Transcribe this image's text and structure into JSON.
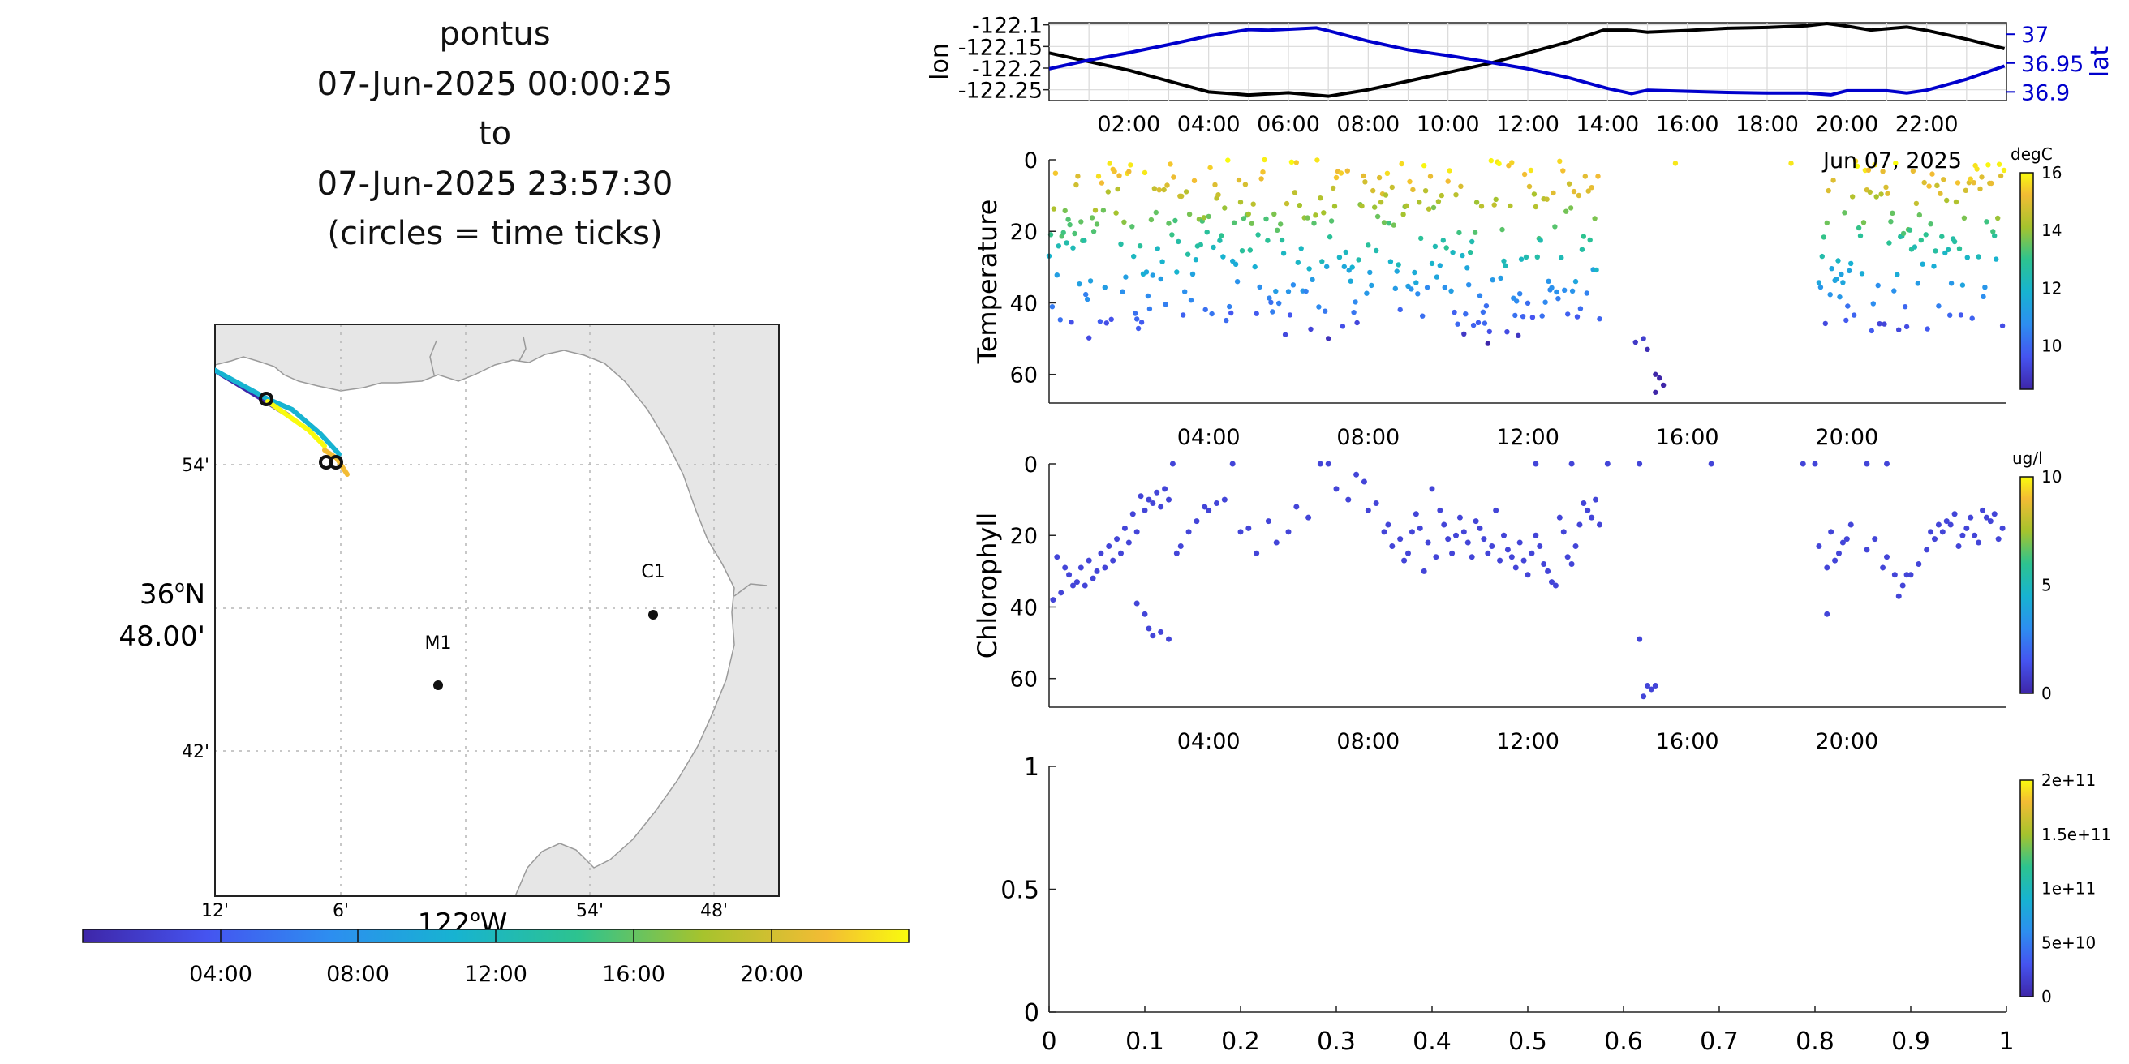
{
  "title": {
    "lines": [
      "pontus",
      "07-Jun-2025 00:00:25",
      "to",
      "07-Jun-2025 23:57:30",
      "(circles = time ticks)"
    ]
  },
  "map": {
    "lat_ticks": [
      "54'",
      "48.00'",
      "42'"
    ],
    "lat_major_label": "36°N",
    "lon_ticks": [
      "12'",
      "6'",
      "54'",
      "48'"
    ],
    "lon_major_label": "122°W",
    "stations": [
      {
        "name": "C1",
        "lon": -121.848,
        "lat": 36.797
      },
      {
        "name": "M1",
        "lon": -122.022,
        "lat": 36.747
      }
    ],
    "colors": {
      "land": "#e6e6e6",
      "water": "#ffffff",
      "grid": "#b5b5b5"
    }
  },
  "colorbar_time": {
    "tick_labels": [
      "04:00",
      "08:00",
      "12:00",
      "16:00",
      "20:00"
    ]
  },
  "chart_data": [
    {
      "type": "line",
      "name": "position",
      "xlabel_left": "lon",
      "ylabel_right": "lat",
      "x_tick_labels": [
        "02:00",
        "04:00",
        "06:00",
        "08:00",
        "10:00",
        "12:00",
        "14:00",
        "16:00",
        "18:00",
        "20:00",
        "22:00"
      ],
      "y_left_ticks": [
        "-122.1",
        "-122.15",
        "-122.2",
        "-122.25"
      ],
      "y_right_ticks": [
        "37",
        "36.95",
        "36.9"
      ],
      "series": [
        {
          "name": "lon",
          "color": "#000000",
          "points": [
            [
              0,
              -122.165
            ],
            [
              1,
              -122.185
            ],
            [
              2,
              -122.205
            ],
            [
              3,
              -122.23
            ],
            [
              4,
              -122.255
            ],
            [
              5,
              -122.262
            ],
            [
              6,
              -122.257
            ],
            [
              7,
              -122.265
            ],
            [
              8,
              -122.25
            ],
            [
              9,
              -122.23
            ],
            [
              10,
              -122.21
            ],
            [
              11,
              -122.19
            ],
            [
              12,
              -122.165
            ],
            [
              13,
              -122.14
            ],
            [
              13.9,
              -122.112
            ],
            [
              14.5,
              -122.112
            ],
            [
              15,
              -122.117
            ],
            [
              16,
              -122.113
            ],
            [
              17,
              -122.108
            ],
            [
              18,
              -122.106
            ],
            [
              19,
              -122.102
            ],
            [
              19.5,
              -122.097
            ],
            [
              20,
              -122.103
            ],
            [
              20.6,
              -122.112
            ],
            [
              21.5,
              -122.105
            ],
            [
              22,
              -122.113
            ],
            [
              23,
              -122.133
            ],
            [
              23.95,
              -122.155
            ]
          ]
        },
        {
          "name": "lat",
          "color": "#0000cc",
          "points": [
            [
              0,
              36.94
            ],
            [
              1,
              36.955
            ],
            [
              2,
              36.968
            ],
            [
              3,
              36.982
            ],
            [
              4,
              36.997
            ],
            [
              5,
              37.008
            ],
            [
              5.5,
              37.007
            ],
            [
              6.7,
              37.011
            ],
            [
              7,
              37.006
            ],
            [
              8,
              36.988
            ],
            [
              9,
              36.973
            ],
            [
              10,
              36.963
            ],
            [
              11,
              36.952
            ],
            [
              12,
              36.94
            ],
            [
              13,
              36.925
            ],
            [
              14,
              36.906
            ],
            [
              14.6,
              36.897
            ],
            [
              15,
              36.903
            ],
            [
              16,
              36.901
            ],
            [
              17,
              36.899
            ],
            [
              18,
              36.898
            ],
            [
              19,
              36.898
            ],
            [
              19.6,
              36.895
            ],
            [
              20,
              36.902
            ],
            [
              21,
              36.902
            ],
            [
              21.5,
              36.898
            ],
            [
              22,
              36.903
            ],
            [
              23,
              36.922
            ],
            [
              23.95,
              36.945
            ]
          ]
        }
      ],
      "xlim": [
        0,
        24
      ]
    },
    {
      "type": "scatter",
      "name": "temperature",
      "ylabel": "Temperature",
      "colorbar_unit": "degC",
      "colorbar_ticks": [
        "16",
        "14",
        "12",
        "10"
      ],
      "clim": [
        8.5,
        16
      ],
      "x_tick_labels": [
        "04:00",
        "08:00",
        "12:00",
        "16:00",
        "20:00"
      ],
      "y_ticks": [
        "0",
        "20",
        "40",
        "60"
      ],
      "date_label": "Jun 07, 2025",
      "ylim": [
        68,
        0
      ],
      "xlim": [
        0,
        24
      ],
      "segments": [
        [
          0.0,
          13.8,
          0.5
        ],
        [
          19.3,
          23.95,
          0.55
        ]
      ],
      "outliers": [
        [
          14.7,
          51
        ],
        [
          14.9,
          50
        ],
        [
          15.0,
          53
        ],
        [
          15.2,
          60
        ],
        [
          15.3,
          61
        ],
        [
          15.4,
          63
        ],
        [
          15.2,
          65
        ],
        [
          15.7,
          1
        ],
        [
          18.6,
          1
        ]
      ]
    },
    {
      "type": "scatter",
      "name": "chlorophyll",
      "ylabel": "Chlorophyll",
      "colorbar_unit": "ug/l",
      "colorbar_ticks": [
        "10",
        "5",
        "0"
      ],
      "clim": [
        0,
        10
      ],
      "x_tick_labels": [
        "04:00",
        "08:00",
        "12:00",
        "16:00",
        "20:00"
      ],
      "y_ticks": [
        "0",
        "20",
        "40",
        "60"
      ],
      "ylim": [
        68,
        0
      ],
      "xlim": [
        0,
        24
      ],
      "points": [
        [
          0.1,
          38
        ],
        [
          0.2,
          26
        ],
        [
          0.3,
          36
        ],
        [
          0.4,
          29
        ],
        [
          0.5,
          31
        ],
        [
          0.6,
          34
        ],
        [
          0.7,
          33
        ],
        [
          0.8,
          29
        ],
        [
          0.9,
          34
        ],
        [
          1.0,
          27
        ],
        [
          1.1,
          32
        ],
        [
          1.2,
          30
        ],
        [
          1.3,
          25
        ],
        [
          1.4,
          29
        ],
        [
          1.5,
          23
        ],
        [
          1.6,
          27
        ],
        [
          1.7,
          21
        ],
        [
          1.8,
          25
        ],
        [
          1.9,
          18
        ],
        [
          2.0,
          22
        ],
        [
          2.1,
          14
        ],
        [
          2.2,
          19
        ],
        [
          2.3,
          9
        ],
        [
          2.4,
          13
        ],
        [
          2.5,
          10
        ],
        [
          2.6,
          11
        ],
        [
          2.7,
          8
        ],
        [
          2.8,
          12
        ],
        [
          2.9,
          7
        ],
        [
          3.0,
          10
        ],
        [
          2.4,
          42
        ],
        [
          2.5,
          46
        ],
        [
          2.6,
          48
        ],
        [
          2.8,
          47
        ],
        [
          3.0,
          49
        ],
        [
          2.2,
          39
        ],
        [
          3.2,
          25
        ],
        [
          3.3,
          23
        ],
        [
          3.5,
          19
        ],
        [
          3.7,
          16
        ],
        [
          3.9,
          12
        ],
        [
          4.0,
          13
        ],
        [
          4.2,
          11
        ],
        [
          4.4,
          10
        ],
        [
          3.1,
          0
        ],
        [
          4.6,
          0
        ],
        [
          4.8,
          19
        ],
        [
          5.0,
          18
        ],
        [
          5.2,
          25
        ],
        [
          5.5,
          16
        ],
        [
          5.7,
          22
        ],
        [
          6.0,
          19
        ],
        [
          6.2,
          12
        ],
        [
          6.5,
          15
        ],
        [
          6.8,
          0
        ],
        [
          7.0,
          0
        ],
        [
          7.2,
          7
        ],
        [
          7.5,
          10
        ],
        [
          7.7,
          3
        ],
        [
          7.9,
          5
        ],
        [
          8.0,
          13
        ],
        [
          8.2,
          11
        ],
        [
          8.4,
          19
        ],
        [
          8.5,
          17
        ],
        [
          8.6,
          23
        ],
        [
          8.8,
          21
        ],
        [
          8.9,
          27
        ],
        [
          9.0,
          25
        ],
        [
          9.1,
          19
        ],
        [
          9.2,
          14
        ],
        [
          9.3,
          18
        ],
        [
          9.4,
          30
        ],
        [
          9.5,
          22
        ],
        [
          9.6,
          7
        ],
        [
          9.7,
          26
        ],
        [
          9.8,
          13
        ],
        [
          9.9,
          17
        ],
        [
          10.0,
          21
        ],
        [
          10.1,
          25
        ],
        [
          10.2,
          20
        ],
        [
          10.3,
          15
        ],
        [
          10.4,
          19
        ],
        [
          10.5,
          22
        ],
        [
          10.6,
          26
        ],
        [
          10.7,
          16
        ],
        [
          10.8,
          18
        ],
        [
          10.9,
          21
        ],
        [
          11.0,
          25
        ],
        [
          11.1,
          23
        ],
        [
          11.2,
          13
        ],
        [
          11.3,
          27
        ],
        [
          11.4,
          20
        ],
        [
          11.5,
          24
        ],
        [
          11.6,
          26
        ],
        [
          11.7,
          29
        ],
        [
          11.8,
          22
        ],
        [
          11.9,
          27
        ],
        [
          12.0,
          31
        ],
        [
          12.1,
          25
        ],
        [
          12.2,
          20
        ],
        [
          12.3,
          23
        ],
        [
          12.4,
          28
        ],
        [
          12.5,
          30
        ],
        [
          12.6,
          33
        ],
        [
          12.7,
          34
        ],
        [
          12.8,
          15
        ],
        [
          12.9,
          19
        ],
        [
          13.0,
          26
        ],
        [
          13.1,
          28
        ],
        [
          13.2,
          23
        ],
        [
          13.3,
          17
        ],
        [
          13.4,
          11
        ],
        [
          13.5,
          13
        ],
        [
          13.6,
          15
        ],
        [
          13.7,
          10
        ],
        [
          13.8,
          17
        ],
        [
          12.2,
          0
        ],
        [
          13.1,
          0
        ],
        [
          14.0,
          0
        ],
        [
          14.8,
          0
        ],
        [
          16.6,
          0
        ],
        [
          18.9,
          0
        ],
        [
          19.2,
          0
        ],
        [
          19.3,
          23
        ],
        [
          19.5,
          29
        ],
        [
          19.6,
          19
        ],
        [
          19.7,
          27
        ],
        [
          19.8,
          25
        ],
        [
          19.9,
          22
        ],
        [
          20.0,
          21
        ],
        [
          20.1,
          17
        ],
        [
          19.5,
          42
        ],
        [
          20.5,
          24
        ],
        [
          20.7,
          21
        ],
        [
          20.9,
          29
        ],
        [
          21.0,
          26
        ],
        [
          21.2,
          31
        ],
        [
          21.3,
          37
        ],
        [
          21.4,
          34
        ],
        [
          21.5,
          31
        ],
        [
          21.6,
          31
        ],
        [
          21.8,
          28
        ],
        [
          22.0,
          24
        ],
        [
          22.1,
          19
        ],
        [
          22.2,
          21
        ],
        [
          22.3,
          17
        ],
        [
          22.4,
          19
        ],
        [
          22.5,
          16
        ],
        [
          22.6,
          17
        ],
        [
          22.7,
          14
        ],
        [
          22.8,
          23
        ],
        [
          22.9,
          20
        ],
        [
          23.0,
          18
        ],
        [
          23.1,
          15
        ],
        [
          23.2,
          20
        ],
        [
          23.3,
          22
        ],
        [
          23.4,
          13
        ],
        [
          23.5,
          15
        ],
        [
          23.6,
          16
        ],
        [
          23.7,
          14
        ],
        [
          23.8,
          21
        ],
        [
          23.9,
          18
        ],
        [
          20.5,
          0
        ],
        [
          21.0,
          0
        ],
        [
          14.8,
          49
        ],
        [
          15.0,
          62
        ],
        [
          15.1,
          63
        ],
        [
          15.2,
          62
        ],
        [
          14.9,
          65
        ]
      ]
    },
    {
      "type": "scatter",
      "name": "empty",
      "x_ticks": [
        "0",
        "0.1",
        "0.2",
        "0.3",
        "0.4",
        "0.5",
        "0.6",
        "0.7",
        "0.8",
        "0.9",
        "1"
      ],
      "y_ticks": [
        "1",
        "0.5",
        "0"
      ],
      "colorbar_ticks": [
        "2e+11",
        "1.5e+11",
        "1e+11",
        "5e+10",
        "0"
      ],
      "xlim": [
        0,
        1
      ],
      "ylim": [
        0,
        1
      ]
    }
  ]
}
